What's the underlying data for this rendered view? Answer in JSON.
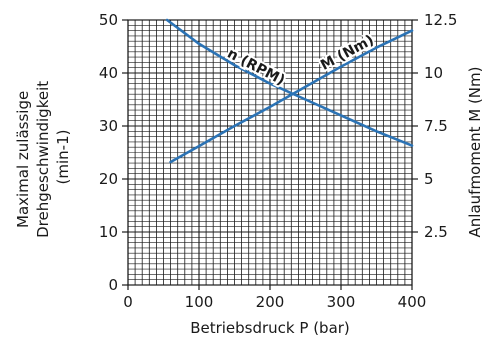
{
  "chart_data": {
    "type": "line",
    "xlabel": "Betriebsdruck P (bar)",
    "ylabel_left": [
      "Maximal zulässige",
      "Drehgeschwindigkeit",
      "(min-1)"
    ],
    "ylabel_right": "Anlaufmoment M (Nm)",
    "x_ticks": [
      "0",
      "100",
      "200",
      "300",
      "400"
    ],
    "y_left_ticks": [
      "0",
      "10",
      "20",
      "30",
      "40",
      "50"
    ],
    "y_right_ticks": [
      "2.5",
      "5",
      "7.5",
      "10",
      "12.5"
    ],
    "xlim": [
      0,
      400
    ],
    "ylim_left": [
      0,
      50
    ],
    "ylim_right": [
      0,
      12.5
    ],
    "grid": true,
    "series": [
      {
        "name": "n (RPM)",
        "axis": "left",
        "color": "#2b73b5",
        "x": [
          55,
          100,
          150,
          200,
          250,
          300,
          350,
          400
        ],
        "y": [
          50,
          45.5,
          41.5,
          38,
          35,
          32,
          29,
          26.3
        ]
      },
      {
        "name": "M (Nm)",
        "axis": "right",
        "color": "#2b73b5",
        "x": [
          60,
          100,
          150,
          200,
          250,
          300,
          350,
          400
        ],
        "y": [
          5.8,
          6.55,
          7.5,
          8.4,
          9.35,
          10.3,
          11.2,
          12.0
        ]
      }
    ]
  }
}
